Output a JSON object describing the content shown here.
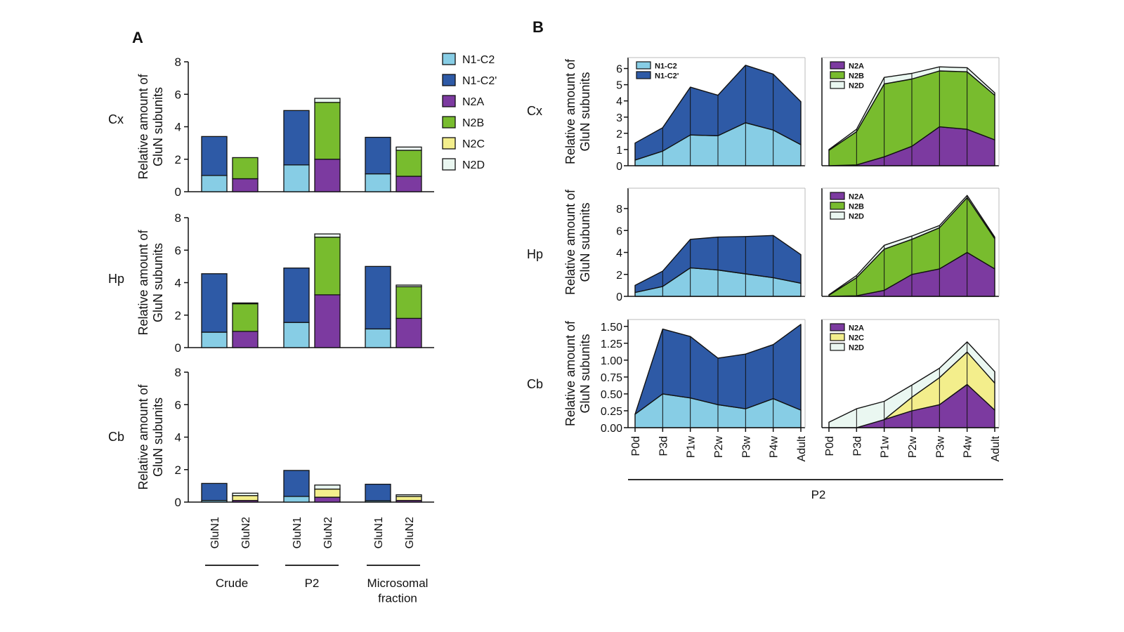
{
  "figure": {
    "panel_a_label": "A",
    "panel_b_label": "B",
    "region_labels": [
      "Cx",
      "Hp",
      "Cb"
    ],
    "y_axis_label_line1": "Relative amount of",
    "y_axis_label_line2": "GluN subunits",
    "panel_b_x_group_label": "P2"
  },
  "colors": {
    "N1-C2": "#87cde5",
    "N1-C2'": "#2e5aa6",
    "N2A": "#7c3aa0",
    "N2B": "#78bc2e",
    "N2C": "#f3ee8c",
    "N2D": "#eaf7f1"
  },
  "chart_data": [
    {
      "type": "bar",
      "panel": "A",
      "region": "Cx",
      "stacked": true,
      "categories": [
        "GluN1",
        "GluN2",
        "GluN1",
        "GluN2",
        "GluN1",
        "GluN2"
      ],
      "groups": [
        "Crude",
        "P2",
        "Microsomal fraction"
      ],
      "ylim": [
        0,
        8
      ],
      "yticks": [
        0,
        2,
        4,
        6,
        8
      ],
      "legend": [
        "N1-C2",
        "N1-C2'",
        "N2A",
        "N2B",
        "N2C",
        "N2D"
      ],
      "legend_position": "right",
      "series": [
        {
          "name": "N1-C2",
          "values": [
            1.0,
            0,
            1.65,
            0,
            1.1,
            0
          ]
        },
        {
          "name": "N1-C2'",
          "values": [
            2.4,
            0,
            3.35,
            0,
            2.25,
            0
          ]
        },
        {
          "name": "N2A",
          "values": [
            0,
            0.8,
            0,
            2.0,
            0,
            0.95
          ]
        },
        {
          "name": "N2B",
          "values": [
            0,
            1.3,
            0,
            3.5,
            0,
            1.6
          ]
        },
        {
          "name": "N2C",
          "values": [
            0,
            0,
            0,
            0,
            0,
            0
          ]
        },
        {
          "name": "N2D",
          "values": [
            0,
            0,
            0,
            0.25,
            0,
            0.2
          ]
        }
      ]
    },
    {
      "type": "bar",
      "panel": "A",
      "region": "Hp",
      "stacked": true,
      "categories": [
        "GluN1",
        "GluN2",
        "GluN1",
        "GluN2",
        "GluN1",
        "GluN2"
      ],
      "ylim": [
        0,
        8
      ],
      "yticks": [
        0,
        2,
        4,
        6,
        8
      ],
      "series": [
        {
          "name": "N1-C2",
          "values": [
            0.95,
            0,
            1.55,
            0,
            1.15,
            0
          ]
        },
        {
          "name": "N1-C2'",
          "values": [
            3.6,
            0,
            3.35,
            0,
            3.85,
            0
          ]
        },
        {
          "name": "N2A",
          "values": [
            0,
            1.0,
            0,
            3.25,
            0,
            1.8
          ]
        },
        {
          "name": "N2B",
          "values": [
            0,
            1.7,
            0,
            3.55,
            0,
            1.95
          ]
        },
        {
          "name": "N2C",
          "values": [
            0,
            0,
            0,
            0,
            0,
            0
          ]
        },
        {
          "name": "N2D",
          "values": [
            0,
            0.05,
            0,
            0.2,
            0,
            0.1
          ]
        }
      ]
    },
    {
      "type": "bar",
      "panel": "A",
      "region": "Cb",
      "stacked": true,
      "categories": [
        "GluN1",
        "GluN2",
        "GluN1",
        "GluN2",
        "GluN1",
        "GluN2"
      ],
      "ylim": [
        0,
        8
      ],
      "yticks": [
        0,
        2,
        4,
        6,
        8
      ],
      "series": [
        {
          "name": "N1-C2",
          "values": [
            0.1,
            0,
            0.35,
            0,
            0.08,
            0
          ]
        },
        {
          "name": "N1-C2'",
          "values": [
            1.05,
            0,
            1.6,
            0,
            1.02,
            0
          ]
        },
        {
          "name": "N2A",
          "values": [
            0,
            0.1,
            0,
            0.3,
            0,
            0.1
          ]
        },
        {
          "name": "N2B",
          "values": [
            0,
            0,
            0,
            0,
            0,
            0
          ]
        },
        {
          "name": "N2C",
          "values": [
            0,
            0.3,
            0,
            0.5,
            0,
            0.25
          ]
        },
        {
          "name": "N2D",
          "values": [
            0,
            0.15,
            0,
            0.25,
            0,
            0.1
          ]
        }
      ]
    },
    {
      "type": "area",
      "panel": "B",
      "region": "Cx",
      "stacked": true,
      "x": [
        "P0d",
        "P3d",
        "P1w",
        "P2w",
        "P3w",
        "P4w",
        "Adult"
      ],
      "ylim": [
        0,
        6.5
      ],
      "yticks": [
        "0",
        "1",
        "2",
        "3",
        "4",
        "5",
        "6"
      ],
      "legend": [
        "N1-C2",
        "N1-C2'"
      ],
      "legend_position": "top-left",
      "series": [
        {
          "name": "N1-C2",
          "values": [
            0.35,
            0.9,
            1.9,
            1.85,
            2.65,
            2.2,
            1.3
          ]
        },
        {
          "name": "N1-C2'",
          "values": [
            1.05,
            1.45,
            2.95,
            2.5,
            3.55,
            3.45,
            2.65
          ]
        }
      ]
    },
    {
      "type": "area",
      "panel": "B",
      "region": "Cx",
      "stacked": true,
      "x": [
        "P0d",
        "P3d",
        "P1w",
        "P2w",
        "P3w",
        "P4w",
        "Adult"
      ],
      "ylim": [
        0,
        6.5
      ],
      "legend": [
        "N2A",
        "N2B",
        "N2D"
      ],
      "legend_position": "top-left",
      "series": [
        {
          "name": "N2A",
          "values": [
            0.0,
            0.05,
            0.55,
            1.2,
            2.4,
            2.25,
            1.6
          ]
        },
        {
          "name": "N2B",
          "values": [
            0.95,
            2.05,
            4.5,
            4.15,
            3.45,
            3.55,
            2.75
          ]
        },
        {
          "name": "N2D",
          "values": [
            0.05,
            0.15,
            0.4,
            0.35,
            0.25,
            0.25,
            0.15
          ]
        }
      ]
    },
    {
      "type": "area",
      "panel": "B",
      "region": "Hp",
      "stacked": true,
      "x": [
        "P0d",
        "P3d",
        "P1w",
        "P2w",
        "P3w",
        "P4w",
        "Adult"
      ],
      "ylim": [
        0,
        9.6
      ],
      "yticks": [
        "0",
        "2",
        "4",
        "6",
        "8"
      ],
      "series": [
        {
          "name": "N1-C2",
          "values": [
            0.35,
            0.9,
            2.6,
            2.4,
            2.05,
            1.7,
            1.2
          ]
        },
        {
          "name": "N1-C2'",
          "values": [
            0.65,
            1.4,
            2.6,
            3.0,
            3.4,
            3.85,
            2.6
          ]
        }
      ]
    },
    {
      "type": "area",
      "panel": "B",
      "region": "Hp",
      "stacked": true,
      "x": [
        "P0d",
        "P3d",
        "P1w",
        "P2w",
        "P3w",
        "P4w",
        "Adult"
      ],
      "ylim": [
        0,
        9.6
      ],
      "legend": [
        "N2A",
        "N2B",
        "N2D"
      ],
      "legend_position": "top-left",
      "series": [
        {
          "name": "N2A",
          "values": [
            0.0,
            0.05,
            0.55,
            2.0,
            2.5,
            4.0,
            2.5
          ]
        },
        {
          "name": "N2B",
          "values": [
            0.1,
            1.65,
            3.75,
            3.2,
            3.75,
            5.0,
            2.75
          ]
        },
        {
          "name": "N2D",
          "values": [
            0.05,
            0.2,
            0.35,
            0.3,
            0.2,
            0.2,
            0.15
          ]
        }
      ]
    },
    {
      "type": "area",
      "panel": "B",
      "region": "Cb",
      "stacked": true,
      "x": [
        "P0d",
        "P3d",
        "P1w",
        "P2w",
        "P3w",
        "P4w",
        "Adult"
      ],
      "ylim": [
        0,
        1.56
      ],
      "yticks": [
        "0.00",
        "0.25",
        "0.50",
        "0.75",
        "1.00",
        "1.25",
        "1.50"
      ],
      "series": [
        {
          "name": "N1-C2",
          "values": [
            0.2,
            0.5,
            0.44,
            0.34,
            0.28,
            0.43,
            0.26
          ]
        },
        {
          "name": "N1-C2'",
          "values": [
            0.0,
            0.96,
            0.91,
            0.69,
            0.81,
            0.8,
            1.27
          ]
        }
      ]
    },
    {
      "type": "area",
      "panel": "B",
      "region": "Cb",
      "stacked": true,
      "x": [
        "P0d",
        "P3d",
        "P1w",
        "P2w",
        "P3w",
        "P4w",
        "Adult"
      ],
      "ylim": [
        0,
        1.56
      ],
      "legend": [
        "N2A",
        "N2C",
        "N2D"
      ],
      "legend_position": "top-left",
      "series": [
        {
          "name": "N2A",
          "values": [
            0.0,
            0.0,
            0.12,
            0.25,
            0.34,
            0.64,
            0.26
          ]
        },
        {
          "name": "N2C",
          "values": [
            0.0,
            0.0,
            0.0,
            0.2,
            0.4,
            0.48,
            0.4
          ]
        },
        {
          "name": "N2D",
          "values": [
            0.08,
            0.28,
            0.27,
            0.18,
            0.14,
            0.15,
            0.17
          ]
        }
      ]
    }
  ]
}
